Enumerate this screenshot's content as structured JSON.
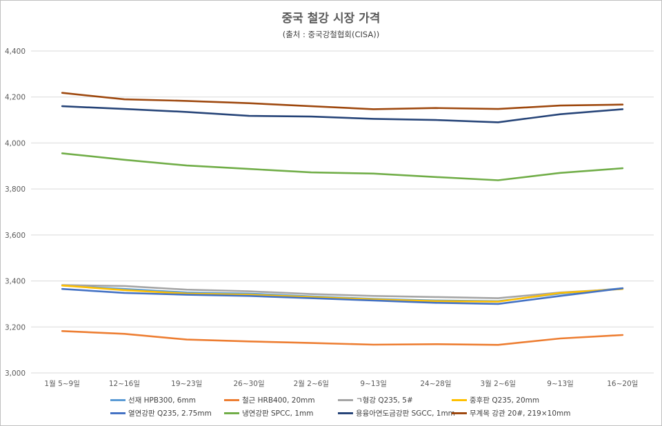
{
  "chart_data": {
    "type": "line",
    "title": "중국 철강 시장 가격",
    "subtitle": "(출처 : 중국강철협회(CISA))",
    "xlabel": "",
    "ylabel": "",
    "categories": [
      "1월 5~9일",
      "12~16일",
      "19~23일",
      "26~30일",
      "2월 2~6일",
      "9~13일",
      "24~28일",
      "3월 2~6일",
      "9~13일",
      "16~20일"
    ],
    "ylim": [
      3000,
      4400
    ],
    "yticks": [
      3000,
      3200,
      3400,
      3600,
      3800,
      4000,
      4200,
      4400
    ],
    "ytick_labels": [
      "3,000",
      "3,200",
      "3,400",
      "3,600",
      "3,800",
      "4,000",
      "4,200",
      "4,400"
    ],
    "grid": true,
    "legend_position": "bottom",
    "series": [
      {
        "name": "선재 HPB300, 6mm",
        "color": "#5b9bd5",
        "values": [
          3380,
          3365,
          3350,
          3345,
          3333,
          3322,
          3315,
          3312,
          3345,
          3368
        ]
      },
      {
        "name": "철근 HRB400, 20mm",
        "color": "#ed7d31",
        "values": [
          3182,
          3170,
          3145,
          3137,
          3130,
          3123,
          3125,
          3122,
          3150,
          3165
        ]
      },
      {
        "name": "ㄱ형강 Q235, 5#",
        "color": "#a5a5a5",
        "values": [
          3382,
          3378,
          3362,
          3355,
          3343,
          3335,
          3330,
          3325,
          3350,
          3365
        ]
      },
      {
        "name": "중후판 Q235, 20mm",
        "color": "#ffc000",
        "values": [
          3380,
          3360,
          3345,
          3340,
          3330,
          3320,
          3312,
          3310,
          3348,
          3365
        ]
      },
      {
        "name": "열연강판 Q235, 2.75mm",
        "color": "#4472c4",
        "values": [
          3365,
          3348,
          3340,
          3335,
          3325,
          3315,
          3305,
          3300,
          3335,
          3368
        ]
      },
      {
        "name": "냉연강판 SPCC, 1mm",
        "color": "#70ad47",
        "values": [
          3955,
          3927,
          3902,
          3887,
          3872,
          3867,
          3852,
          3838,
          3870,
          3890
        ]
      },
      {
        "name": "용융아연도금강판 SGCC, 1mm",
        "color": "#264478",
        "values": [
          4160,
          4148,
          4135,
          4118,
          4115,
          4105,
          4100,
          4090,
          4125,
          4147
        ]
      },
      {
        "name": "무계목 강관 20#, 219×10mm",
        "color": "#9e480e",
        "values": [
          4218,
          4190,
          4183,
          4173,
          4160,
          4147,
          4152,
          4148,
          4163,
          4167
        ]
      }
    ]
  }
}
